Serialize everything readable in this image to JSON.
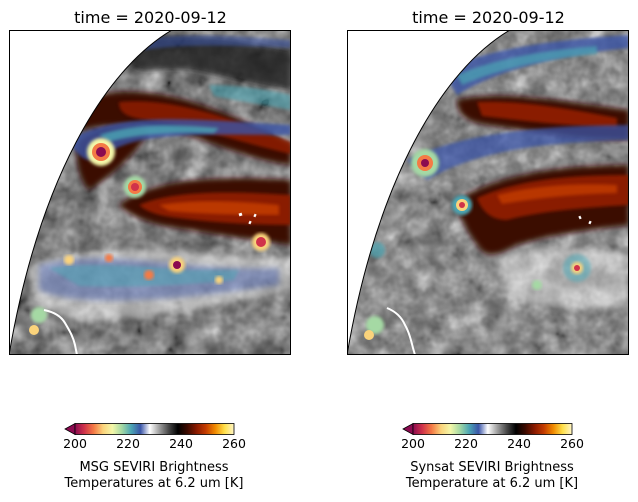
{
  "panels": [
    {
      "title": "time = 2020-09-12",
      "colorbar": {
        "label_line1": "MSG SEVIRI Brightness",
        "label_line2": "Temperatures at 6.2 um [K]",
        "ticks": [
          "200",
          "220",
          "240",
          "260"
        ],
        "range": [
          200,
          260
        ]
      }
    },
    {
      "title": "time = 2020-09-12",
      "colorbar": {
        "label_line1": "Synsat SEVIRI Brightness",
        "label_line2": "Temperature at 6.2 um [K]",
        "ticks": [
          "200",
          "220",
          "240",
          "260"
        ],
        "range": [
          200,
          260
        ]
      }
    }
  ],
  "colormap": [
    "#8b0a50",
    "#d0334a",
    "#f47a45",
    "#fbd37b",
    "#f4f8a9",
    "#a5d9a4",
    "#4ca6b4",
    "#3a55a8",
    "#ffffff",
    "#a0a0a0",
    "#4a4a4a",
    "#000000",
    "#3b0a00",
    "#8a1a00",
    "#c43c00",
    "#f08a00",
    "#ffe04a",
    "#fff6c8"
  ],
  "colors": {
    "offdisk": "#d3d3d3",
    "coast": "#ffffff"
  }
}
